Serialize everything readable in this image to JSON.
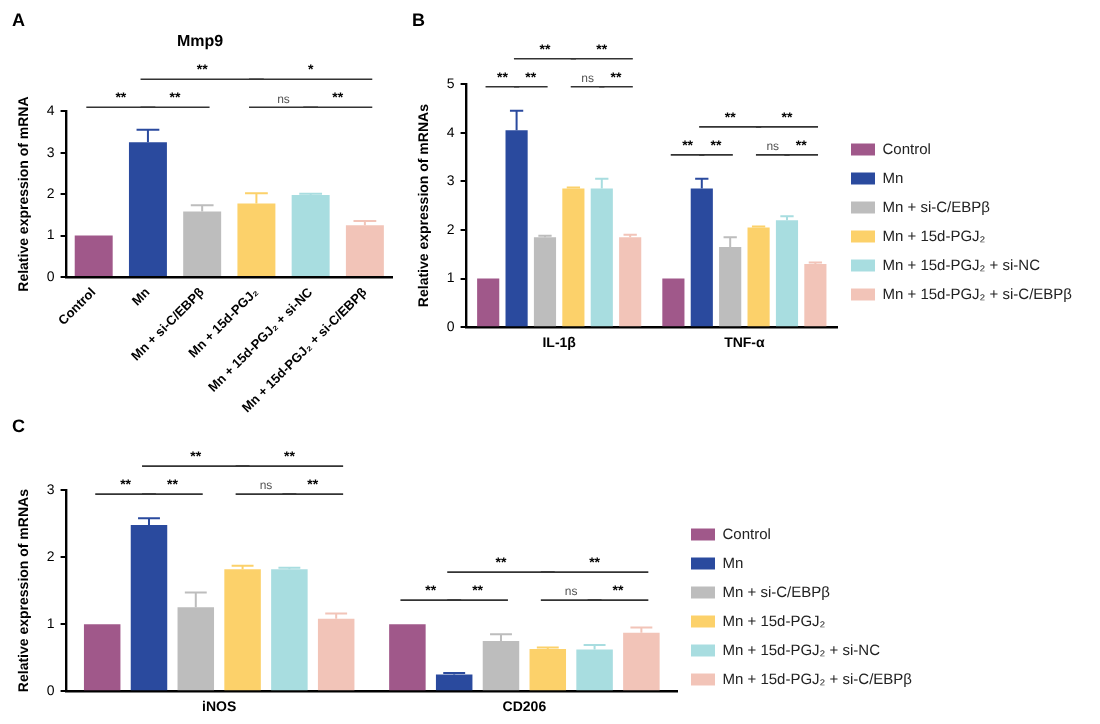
{
  "chart_data": [
    {
      "type": "bar",
      "title": "Mmp9",
      "ylabel": "Relative expression of mRNA",
      "categories": [
        "Control",
        "Mn",
        "Mn + si-C/EBPβ",
        "Mn + 15d-PGJ₂",
        "Mn + 15d-PGJ₂ + si-NC",
        "Mn + 15d-PGJ₂ + si-C/EBPβ"
      ],
      "values": [
        1,
        3.25,
        1.58,
        1.77,
        1.98,
        1.25
      ],
      "errors": [
        null,
        0.3,
        0.15,
        0.25,
        0.03,
        0.1
      ],
      "colors": [
        "#a0588a",
        "#2a4a9e",
        "#bdbdbd",
        "#fcd16a",
        "#a8dde0",
        "#f2c4b8"
      ],
      "ylim": [
        0,
        4
      ],
      "yticks": [
        0,
        1,
        2,
        3,
        4
      ],
      "grid": false,
      "legend": false,
      "annotations": [
        "A",
        "**",
        "**",
        "ns",
        "**",
        "**",
        "*"
      ]
    },
    {
      "type": "bar",
      "ylabel": "Relative expression of mRNAs",
      "categories": [
        "IL-1β",
        "TNF-α"
      ],
      "series": [
        {
          "name": "Control",
          "color": "#a0588a",
          "values": [
            1,
            1
          ]
        },
        {
          "name": "Mn",
          "color": "#2a4a9e",
          "values": [
            4.05,
            2.85
          ],
          "errors": [
            0.4,
            0.2
          ]
        },
        {
          "name": "Mn + si-C/EBPβ",
          "color": "#bdbdbd",
          "values": [
            1.85,
            1.65
          ],
          "errors": [
            0.03,
            0.2
          ]
        },
        {
          "name": "Mn + 15d-PGJ₂",
          "color": "#fcd16a",
          "values": [
            2.85,
            2.05
          ],
          "errors": [
            0.02,
            0.02
          ]
        },
        {
          "name": "Mn + 15d-PGJ₂ + si-NC",
          "color": "#a8dde0",
          "values": [
            2.85,
            2.2
          ],
          "errors": [
            0.2,
            0.08
          ]
        },
        {
          "name": "Mn + 15d-PGJ₂ + si-C/EBPβ",
          "color": "#f2c4b8",
          "values": [
            1.85,
            1.3
          ],
          "errors": [
            0.05,
            0.03
          ]
        }
      ],
      "ylim": [
        0,
        5
      ],
      "yticks": [
        0,
        1,
        2,
        3,
        4,
        5
      ],
      "grid": false,
      "legend": "right",
      "annotations": [
        "B",
        "**",
        "**",
        "ns",
        "**",
        "**",
        "**",
        "**",
        "**",
        "ns",
        "**",
        "**",
        "**"
      ]
    },
    {
      "type": "bar",
      "ylabel": "Relative expression of mRNAs",
      "categories": [
        "iNOS",
        "CD206"
      ],
      "series": [
        {
          "name": "Control",
          "color": "#a0588a",
          "values": [
            1,
            1
          ]
        },
        {
          "name": "Mn",
          "color": "#2a4a9e",
          "values": [
            2.48,
            0.25
          ],
          "errors": [
            0.1,
            0.02
          ]
        },
        {
          "name": "Mn + si-C/EBPβ",
          "color": "#bdbdbd",
          "values": [
            1.25,
            0.75
          ],
          "errors": [
            0.22,
            0.1
          ]
        },
        {
          "name": "Mn + 15d-PGJ₂",
          "color": "#fcd16a",
          "values": [
            1.82,
            0.63
          ],
          "errors": [
            0.05,
            0.02
          ]
        },
        {
          "name": "Mn + 15d-PGJ₂ + si-NC",
          "color": "#a8dde0",
          "values": [
            1.82,
            0.62
          ],
          "errors": [
            0.02,
            0.07
          ]
        },
        {
          "name": "Mn + 15d-PGJ₂ + si-C/EBPβ",
          "color": "#f2c4b8",
          "values": [
            1.08,
            0.87
          ],
          "errors": [
            0.08,
            0.08
          ]
        }
      ],
      "ylim": [
        0,
        3
      ],
      "yticks": [
        0,
        1,
        2,
        3
      ],
      "grid": false,
      "legend": "right",
      "annotations": [
        "C",
        "**",
        "**",
        "ns",
        "**",
        "**",
        "**",
        "**",
        "**",
        "ns",
        "**",
        "**",
        "**"
      ]
    }
  ]
}
